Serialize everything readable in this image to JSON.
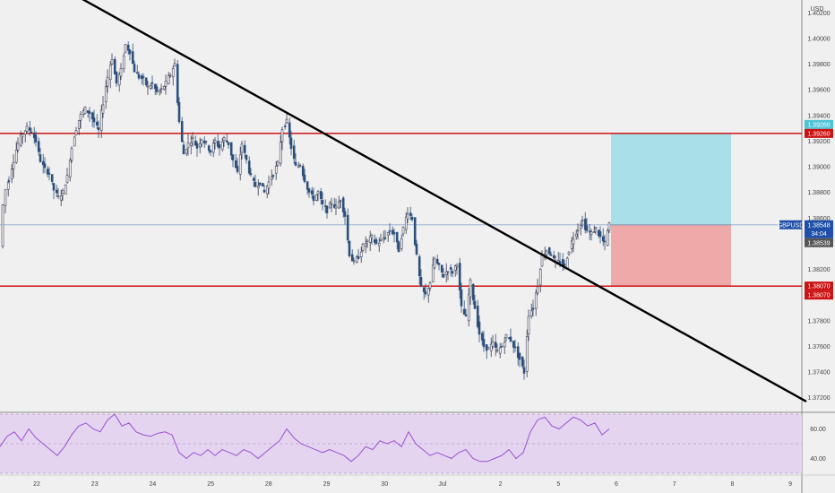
{
  "currency_label": "USD",
  "chart_data": {
    "type": "candlestick",
    "symbol": "GBPUSD",
    "price_axis": {
      "ticks": [
        "1.40200",
        "1.40000",
        "1.39800",
        "1.39600",
        "1.39400",
        "1.39200",
        "1.39000",
        "1.38800",
        "1.38600",
        "1.38400",
        "1.38200",
        "1.38000",
        "1.37800",
        "1.37600",
        "1.37400",
        "1.37200"
      ],
      "range": [
        1.371,
        1.403
      ]
    },
    "time_axis": {
      "ticks": [
        "22",
        "23",
        "24",
        "25",
        "28",
        "29",
        "30",
        "Jul",
        "2",
        "5",
        "6",
        "7",
        "8",
        "9"
      ]
    },
    "price_series": [
      [
        0,
        1.3838
      ],
      [
        3,
        1.387
      ],
      [
        6,
        1.3882
      ],
      [
        10,
        1.389
      ],
      [
        15,
        1.3905
      ],
      [
        20,
        1.3918
      ],
      [
        25,
        1.3926
      ],
      [
        30,
        1.393
      ],
      [
        35,
        1.3928
      ],
      [
        40,
        1.392
      ],
      [
        45,
        1.3905
      ],
      [
        50,
        1.3898
      ],
      [
        55,
        1.3895
      ],
      [
        60,
        1.3882
      ],
      [
        65,
        1.3876
      ],
      [
        70,
        1.388
      ],
      [
        75,
        1.3892
      ],
      [
        80,
        1.3915
      ],
      [
        85,
        1.393
      ],
      [
        90,
        1.394
      ],
      [
        95,
        1.3945
      ],
      [
        100,
        1.3942
      ],
      [
        105,
        1.3935
      ],
      [
        110,
        1.3928
      ],
      [
        115,
        1.395
      ],
      [
        120,
        1.397
      ],
      [
        125,
        1.3985
      ],
      [
        130,
        1.3965
      ],
      [
        135,
        1.3975
      ],
      [
        140,
        1.3995
      ],
      [
        145,
        1.399
      ],
      [
        150,
        1.3975
      ],
      [
        155,
        1.397
      ],
      [
        160,
        1.3968
      ],
      [
        165,
        1.3962
      ],
      [
        170,
        1.3965
      ],
      [
        175,
        1.3958
      ],
      [
        180,
        1.396
      ],
      [
        185,
        1.3965
      ],
      [
        190,
        1.3972
      ],
      [
        195,
        1.398
      ],
      [
        200,
        1.3935
      ],
      [
        205,
        1.391
      ],
      [
        210,
        1.3918
      ],
      [
        215,
        1.3922
      ],
      [
        220,
        1.3915
      ],
      [
        225,
        1.3922
      ],
      [
        230,
        1.3918
      ],
      [
        235,
        1.3912
      ],
      [
        240,
        1.392
      ],
      [
        245,
        1.3915
      ],
      [
        250,
        1.3922
      ],
      [
        255,
        1.3918
      ],
      [
        260,
        1.3905
      ],
      [
        265,
        1.3895
      ],
      [
        270,
        1.3918
      ],
      [
        275,
        1.3905
      ],
      [
        280,
        1.3892
      ],
      [
        285,
        1.3885
      ],
      [
        290,
        1.3888
      ],
      [
        295,
        1.388
      ],
      [
        300,
        1.3888
      ],
      [
        305,
        1.3895
      ],
      [
        310,
        1.3902
      ],
      [
        315,
        1.393
      ],
      [
        320,
        1.3935
      ],
      [
        325,
        1.3915
      ],
      [
        330,
        1.39
      ],
      [
        335,
        1.3902
      ],
      [
        340,
        1.389
      ],
      [
        345,
        1.388
      ],
      [
        350,
        1.3875
      ],
      [
        355,
        1.388
      ],
      [
        360,
        1.387
      ],
      [
        365,
        1.3866
      ],
      [
        370,
        1.3872
      ],
      [
        375,
        1.3868
      ],
      [
        380,
        1.3875
      ],
      [
        385,
        1.3862
      ],
      [
        390,
        1.3832
      ],
      [
        395,
        1.3825
      ],
      [
        400,
        1.383
      ],
      [
        405,
        1.3838
      ],
      [
        410,
        1.3842
      ],
      [
        415,
        1.3845
      ],
      [
        420,
        1.384
      ],
      [
        425,
        1.3842
      ],
      [
        430,
        1.3846
      ],
      [
        435,
        1.385
      ],
      [
        440,
        1.3848
      ],
      [
        445,
        1.3835
      ],
      [
        450,
        1.3852
      ],
      [
        455,
        1.3865
      ],
      [
        460,
        1.386
      ],
      [
        465,
        1.383
      ],
      [
        470,
        1.3805
      ],
      [
        475,
        1.38
      ],
      [
        480,
        1.381
      ],
      [
        485,
        1.3828
      ],
      [
        490,
        1.3822
      ],
      [
        495,
        1.3815
      ],
      [
        500,
        1.382
      ],
      [
        505,
        1.3818
      ],
      [
        510,
        1.3825
      ],
      [
        515,
        1.379
      ],
      [
        520,
        1.3782
      ],
      [
        525,
        1.381
      ],
      [
        530,
        1.379
      ],
      [
        535,
        1.377
      ],
      [
        540,
        1.376
      ],
      [
        545,
        1.3758
      ],
      [
        550,
        1.3762
      ],
      [
        555,
        1.3756
      ],
      [
        560,
        1.376
      ],
      [
        565,
        1.3768
      ],
      [
        570,
        1.3765
      ],
      [
        575,
        1.3758
      ],
      [
        580,
        1.375
      ],
      [
        585,
        1.374
      ],
      [
        590,
        1.3785
      ],
      [
        595,
        1.379
      ],
      [
        600,
        1.3808
      ],
      [
        605,
        1.383
      ],
      [
        610,
        1.3835
      ],
      [
        615,
        1.3832
      ],
      [
        620,
        1.3825
      ],
      [
        625,
        1.3826
      ],
      [
        630,
        1.3822
      ],
      [
        635,
        1.3835
      ],
      [
        640,
        1.3845
      ],
      [
        645,
        1.3852
      ],
      [
        650,
        1.3858
      ],
      [
        655,
        1.385
      ],
      [
        660,
        1.3848
      ],
      [
        665,
        1.3852
      ],
      [
        670,
        1.3845
      ],
      [
        675,
        1.384
      ],
      [
        680,
        1.3855
      ]
    ],
    "rsi_series": [
      [
        0,
        48
      ],
      [
        8,
        55
      ],
      [
        16,
        58
      ],
      [
        24,
        52
      ],
      [
        32,
        60
      ],
      [
        40,
        54
      ],
      [
        48,
        50
      ],
      [
        56,
        46
      ],
      [
        64,
        42
      ],
      [
        72,
        48
      ],
      [
        80,
        56
      ],
      [
        88,
        62
      ],
      [
        96,
        64
      ],
      [
        104,
        60
      ],
      [
        112,
        58
      ],
      [
        120,
        66
      ],
      [
        128,
        70
      ],
      [
        136,
        62
      ],
      [
        144,
        64
      ],
      [
        152,
        58
      ],
      [
        160,
        56
      ],
      [
        168,
        55
      ],
      [
        176,
        57
      ],
      [
        184,
        58
      ],
      [
        192,
        56
      ],
      [
        200,
        44
      ],
      [
        208,
        40
      ],
      [
        216,
        44
      ],
      [
        224,
        42
      ],
      [
        232,
        46
      ],
      [
        240,
        42
      ],
      [
        248,
        46
      ],
      [
        256,
        44
      ],
      [
        264,
        42
      ],
      [
        272,
        46
      ],
      [
        280,
        44
      ],
      [
        288,
        40
      ],
      [
        296,
        44
      ],
      [
        304,
        48
      ],
      [
        312,
        52
      ],
      [
        320,
        60
      ],
      [
        328,
        54
      ],
      [
        336,
        50
      ],
      [
        344,
        48
      ],
      [
        352,
        46
      ],
      [
        360,
        44
      ],
      [
        368,
        46
      ],
      [
        376,
        44
      ],
      [
        384,
        42
      ],
      [
        392,
        38
      ],
      [
        400,
        42
      ],
      [
        408,
        48
      ],
      [
        416,
        46
      ],
      [
        424,
        52
      ],
      [
        432,
        50
      ],
      [
        440,
        52
      ],
      [
        448,
        48
      ],
      [
        456,
        58
      ],
      [
        464,
        50
      ],
      [
        472,
        46
      ],
      [
        480,
        42
      ],
      [
        488,
        44
      ],
      [
        496,
        42
      ],
      [
        504,
        40
      ],
      [
        512,
        44
      ],
      [
        520,
        46
      ],
      [
        528,
        40
      ],
      [
        536,
        38
      ],
      [
        544,
        38
      ],
      [
        552,
        40
      ],
      [
        560,
        42
      ],
      [
        568,
        46
      ],
      [
        576,
        40
      ],
      [
        584,
        44
      ],
      [
        592,
        58
      ],
      [
        600,
        66
      ],
      [
        608,
        68
      ],
      [
        616,
        62
      ],
      [
        624,
        60
      ],
      [
        632,
        64
      ],
      [
        640,
        68
      ],
      [
        648,
        66
      ],
      [
        656,
        62
      ],
      [
        664,
        64
      ],
      [
        672,
        56
      ],
      [
        680,
        60
      ]
    ],
    "rsi_axis": {
      "ticks": [
        "60.00",
        "40.00"
      ],
      "range": [
        30,
        70
      ]
    },
    "horizontal_lines": [
      {
        "price": 1.3926,
        "color": "#cc0000"
      },
      {
        "price": 1.3807,
        "color": "#cc0000"
      },
      {
        "price": 1.38548,
        "color": "#9bb3d4"
      }
    ],
    "trendline": {
      "from": [
        68,
        1.404
      ],
      "to": [
        900,
        1.3717
      ]
    },
    "position": {
      "entry": 1.38548,
      "target": 1.3926,
      "stop": 1.3807
    },
    "badges": {
      "target_upper": "1.39260",
      "target_lower": "1.39260",
      "current_symbol": "GBPUSD",
      "current_price": "1.38548",
      "countdown": "34:04",
      "close_price": "1.38539",
      "stop_upper": "1.38070",
      "stop_lower": "1.38070"
    },
    "colors": {
      "up": "#2a2a3a",
      "target_zone": "#a8dfe8",
      "stop_zone": "#f0a9a9",
      "rsi_line": "#9a4fd1",
      "rsi_band": "#e4d4f0",
      "blue_badge": "#1f4fa8",
      "red_badge": "#cc1111",
      "teal_badge": "#4fc3d6",
      "gray_badge": "#555555"
    }
  }
}
